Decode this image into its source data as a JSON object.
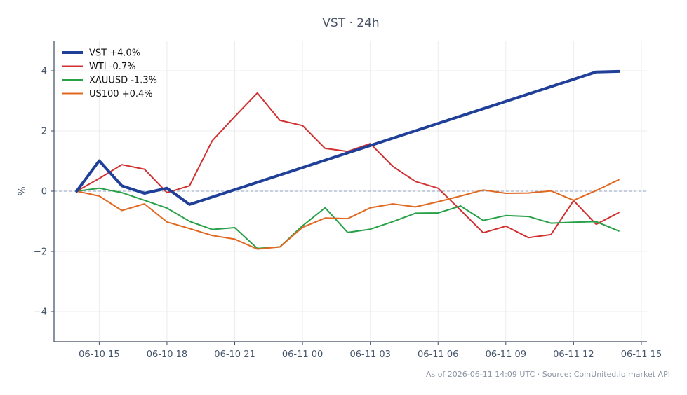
{
  "chart_data": {
    "type": "line",
    "title": "VST · 24h",
    "xlabel": "",
    "ylabel": "%",
    "xlim": [
      "2026-06-10 13:00",
      "2026-06-11 15:15"
    ],
    "ylim": [
      -5,
      5
    ],
    "xticks": [
      "06-10 15",
      "06-10 18",
      "06-10 21",
      "06-11 00",
      "06-11 03",
      "06-11 06",
      "06-11 09",
      "06-11 12",
      "06-11 15"
    ],
    "yticks": [
      -4,
      -2,
      0,
      2,
      4
    ],
    "grid": true,
    "zero_line": true,
    "legend": "top-left",
    "x": [
      "2026-06-10 14:00",
      "2026-06-10 15:00",
      "2026-06-10 16:00",
      "2026-06-10 17:00",
      "2026-06-10 18:00",
      "2026-06-10 19:00",
      "2026-06-10 20:00",
      "2026-06-10 21:00",
      "2026-06-10 22:00",
      "2026-06-10 23:00",
      "2026-06-11 00:00",
      "2026-06-11 01:00",
      "2026-06-11 02:00",
      "2026-06-11 03:00",
      "2026-06-11 04:00",
      "2026-06-11 05:00",
      "2026-06-11 06:00",
      "2026-06-11 07:00",
      "2026-06-11 08:00",
      "2026-06-11 09:00",
      "2026-06-11 10:00",
      "2026-06-11 11:00",
      "2026-06-11 12:00",
      "2026-06-11 13:00",
      "2026-06-11 14:00"
    ],
    "series": [
      {
        "name": "WTI -0.7%",
        "color": "#d03030",
        "width": 2,
        "values": [
          0.0,
          0.42,
          0.88,
          0.73,
          -0.05,
          0.18,
          1.67,
          2.48,
          3.26,
          2.35,
          2.18,
          1.42,
          1.32,
          1.58,
          0.82,
          0.32,
          0.1,
          -0.63,
          -1.38,
          -1.16,
          -1.54,
          -1.44,
          -0.31,
          -1.1,
          -0.71
        ]
      },
      {
        "name": "XAUUSD -1.3%",
        "color": "#27a048",
        "width": 2,
        "values": [
          0.0,
          0.1,
          -0.05,
          -0.3,
          -0.56,
          -1.0,
          -1.27,
          -1.21,
          -1.9,
          -1.85,
          -1.15,
          -0.55,
          -1.37,
          -1.26,
          -1.01,
          -0.73,
          -0.72,
          -0.49,
          -0.97,
          -0.81,
          -0.84,
          -1.06,
          -1.03,
          -1.01,
          -1.32
        ]
      },
      {
        "name": "US100 +0.4%",
        "color": "#e06820",
        "width": 2,
        "values": [
          0.0,
          -0.16,
          -0.64,
          -0.42,
          -1.02,
          -1.24,
          -1.47,
          -1.59,
          -1.92,
          -1.85,
          -1.2,
          -0.89,
          -0.91,
          -0.55,
          -0.42,
          -0.52,
          -0.35,
          -0.16,
          0.04,
          -0.07,
          -0.06,
          0.01,
          -0.3,
          0.02,
          0.38
        ]
      },
      {
        "name": "VST +4.0%",
        "color": "#1f3f99",
        "width": 4,
        "values": [
          0.0,
          1.01,
          0.18,
          -0.07,
          0.1,
          -0.44,
          null,
          null,
          null,
          null,
          null,
          null,
          null,
          null,
          null,
          null,
          null,
          null,
          null,
          null,
          null,
          null,
          null,
          3.96,
          3.98
        ]
      }
    ],
    "legend_order": [
      "VST +4.0%",
      "WTI -0.7%",
      "XAUUSD -1.3%",
      "US100 +0.4%"
    ]
  },
  "footer": "As of 2026-06-11 14:09 UTC · Source: CoinUnited.io market API"
}
